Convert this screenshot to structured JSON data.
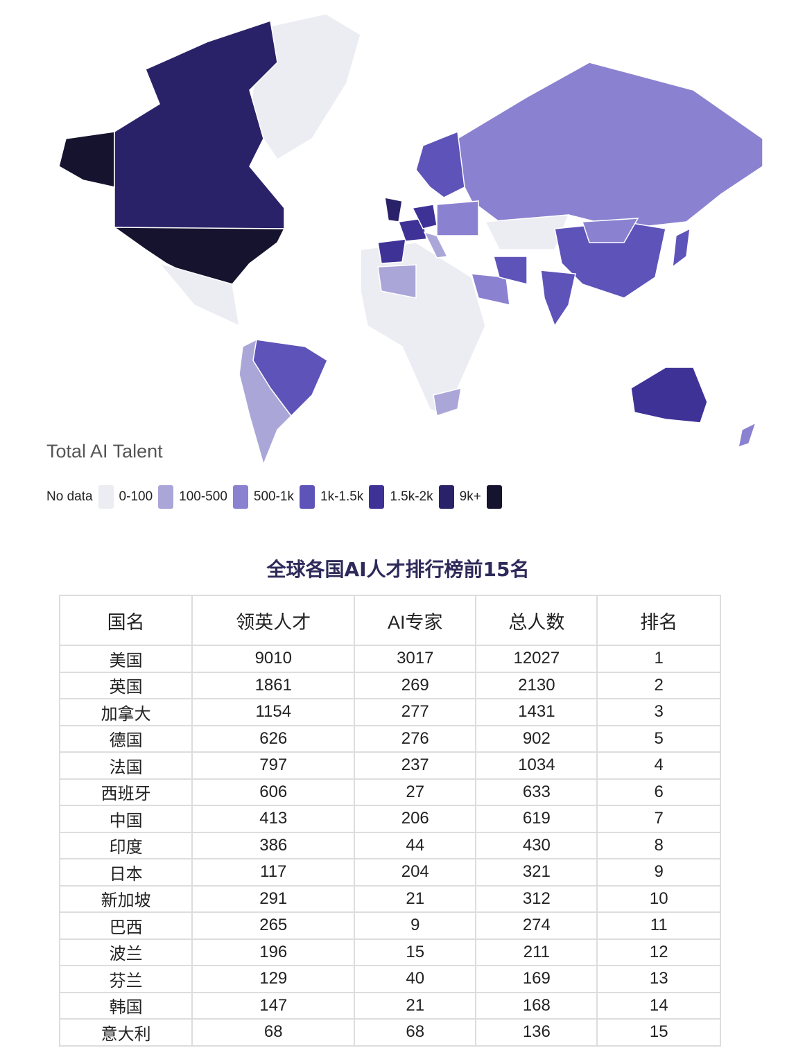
{
  "map": {
    "legend_title": "Total AI Talent",
    "legend": [
      {
        "label": "No data",
        "color": "#ececf3"
      },
      {
        "label": "0-100",
        "color": "#aaa6d8"
      },
      {
        "label": "100-500",
        "color": "#8a82d0"
      },
      {
        "label": "500-1k",
        "color": "#5d53b9"
      },
      {
        "label": "1k-1.5k",
        "color": "#3e3297"
      },
      {
        "label": "1.5k-2k",
        "color": "#2a2268"
      },
      {
        "label": "9k+",
        "color": "#16132f"
      }
    ]
  },
  "table": {
    "title": "全球各国AI人才排行榜前15名",
    "headers": [
      "国名",
      "领英人才",
      "AI专家",
      "总人数",
      "排名"
    ],
    "rows": [
      [
        "美国",
        "9010",
        "3017",
        "12027",
        "1"
      ],
      [
        "英国",
        "1861",
        "269",
        "2130",
        "2"
      ],
      [
        "加拿大",
        "1154",
        "277",
        "1431",
        "3"
      ],
      [
        "德国",
        "626",
        "276",
        "902",
        "5"
      ],
      [
        "法国",
        "797",
        "237",
        "1034",
        "4"
      ],
      [
        "西班牙",
        "606",
        "27",
        "633",
        "6"
      ],
      [
        "中国",
        "413",
        "206",
        "619",
        "7"
      ],
      [
        "印度",
        "386",
        "44",
        "430",
        "8"
      ],
      [
        "日本",
        "117",
        "204",
        "321",
        "9"
      ],
      [
        "新加坡",
        "291",
        "21",
        "312",
        "10"
      ],
      [
        "巴西",
        "265",
        "9",
        "274",
        "11"
      ],
      [
        "波兰",
        "196",
        "15",
        "211",
        "12"
      ],
      [
        "芬兰",
        "129",
        "40",
        "169",
        "13"
      ],
      [
        "韩国",
        "147",
        "21",
        "168",
        "14"
      ],
      [
        "意大利",
        "68",
        "68",
        "136",
        "15"
      ]
    ]
  }
}
